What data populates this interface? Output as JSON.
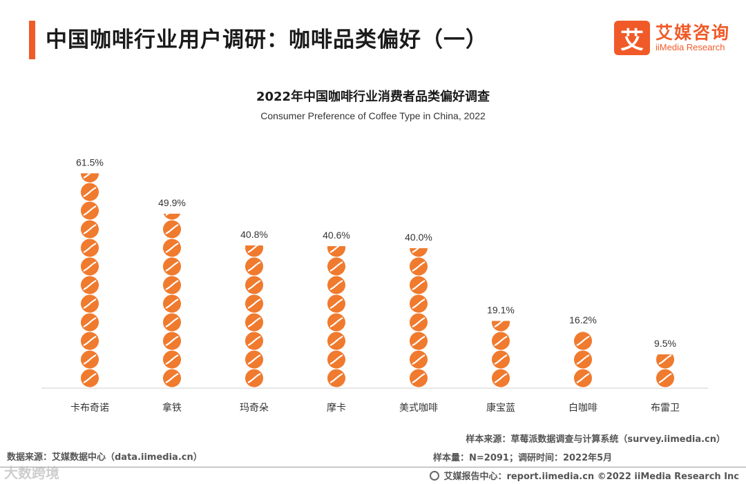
{
  "header": {
    "title": "中国咖啡行业用户调研：咖啡品类偏好（一）",
    "logo_mark": "艾",
    "logo_cn": "艾媒咨询",
    "logo_en": "iiMedia Research"
  },
  "colors": {
    "accent": "#f05a28",
    "bean": "#f07a2e",
    "axis": "#cfcfcf"
  },
  "chart_data": {
    "type": "bar",
    "title": "2022年中国咖啡行业消费者品类偏好调查",
    "subtitle": "Consumer Preference of Coffee Type in China, 2022",
    "xlabel": "",
    "ylabel": "",
    "ylim": [
      0,
      70
    ],
    "grid": false,
    "categories": [
      "卡布奇诺",
      "拿铁",
      "玛奇朵",
      "摩卡",
      "美式咖啡",
      "康宝蓝",
      "白咖啡",
      "布雷卫"
    ],
    "values": [
      61.5,
      49.9,
      40.8,
      40.6,
      40.0,
      19.1,
      16.2,
      9.5
    ],
    "value_labels": [
      "61.5%",
      "49.9%",
      "40.8%",
      "40.6%",
      "40.0%",
      "19.1%",
      "16.2%",
      "9.5%"
    ],
    "unit": "%"
  },
  "footer": {
    "source_left": "数据来源：艾媒数据中心（data.iimedia.cn）",
    "sample_source": "样本来源：草莓派数据调查与计算系统（survey.iimedia.cn）",
    "sample_size": "样本量：N=2091；调研时间：2022年5月",
    "report_center": "艾媒报告中心：report.iimedia.cn   ©2022  iiMedia Research  Inc",
    "watermark": "大数跨境"
  }
}
